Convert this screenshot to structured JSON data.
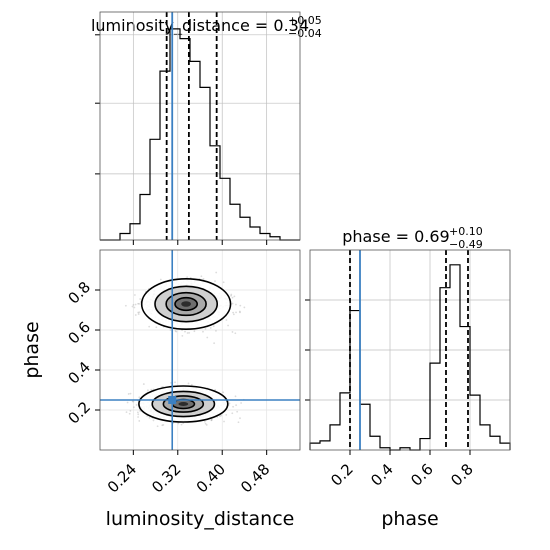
{
  "chart_data": {
    "type": "corner",
    "parameters": [
      {
        "name": "luminosity_distance",
        "axis_label": "luminosity_distance",
        "range": [
          0.18,
          0.54
        ],
        "ticks": [
          0.24,
          0.32,
          0.4,
          0.48
        ],
        "tick_labels": [
          "0.24",
          "0.32",
          "0.40",
          "0.48"
        ],
        "truth": 0.31
      },
      {
        "name": "phase",
        "axis_label": "phase",
        "range": [
          0.0,
          1.0
        ],
        "ticks": [
          0.2,
          0.4,
          0.6,
          0.8
        ],
        "tick_labels": [
          "0.2",
          "0.4",
          "0.6",
          "0.8"
        ],
        "truth": 0.25
      }
    ],
    "titles": [
      {
        "param": "luminosity_distance",
        "prefix": "luminosity_distance = ",
        "median": "0.34",
        "plus": "+0.05",
        "minus": "−0.04"
      },
      {
        "param": "phase",
        "prefix": "phase = ",
        "median": "0.69",
        "plus": "+0.10",
        "minus": "−0.49"
      }
    ],
    "histograms": [
      {
        "param": "luminosity_distance",
        "bin_edges": [
          0.18,
          0.198,
          0.216,
          0.234,
          0.252,
          0.27,
          0.288,
          0.306,
          0.324,
          0.342,
          0.36,
          0.378,
          0.396,
          0.414,
          0.432,
          0.45,
          0.468,
          0.486,
          0.504,
          0.522,
          0.54
        ],
        "counts": [
          0,
          0,
          2,
          5,
          14,
          31,
          52,
          65,
          62,
          55,
          47,
          29,
          19,
          11,
          7,
          4,
          2,
          1,
          0,
          0
        ],
        "quantile_lines": [
          0.3,
          0.34,
          0.39
        ]
      },
      {
        "param": "phase",
        "bin_edges": [
          0.0,
          0.05,
          0.1,
          0.15,
          0.2,
          0.25,
          0.3,
          0.35,
          0.4,
          0.45,
          0.5,
          0.55,
          0.6,
          0.65,
          0.7,
          0.75,
          0.8,
          0.85,
          0.9,
          0.95,
          1.0
        ],
        "counts": [
          3,
          4,
          11,
          25,
          61,
          20,
          6,
          1,
          0,
          1,
          0,
          5,
          38,
          71,
          81,
          54,
          24,
          11,
          6,
          3
        ],
        "quantile_lines": [
          0.2,
          0.68,
          0.79
        ]
      }
    ],
    "density_2d": {
      "x_param": "luminosity_distance",
      "y_param": "phase",
      "modes": [
        {
          "center": [
            0.335,
            0.73
          ],
          "spread": [
            0.04,
            0.07
          ]
        },
        {
          "center": [
            0.33,
            0.23
          ],
          "spread": [
            0.04,
            0.05
          ]
        }
      ],
      "truth_point": [
        0.31,
        0.25
      ]
    },
    "truth_color": "#3b80c2",
    "grid": true
  }
}
